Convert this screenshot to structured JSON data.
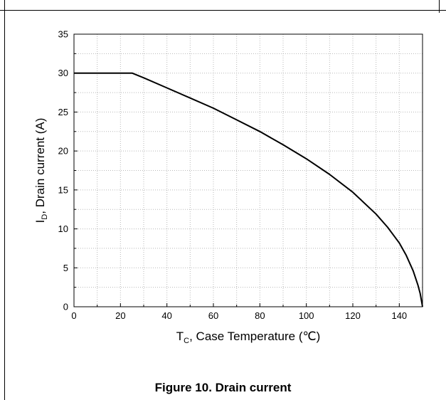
{
  "caption": "Figure 10. Drain current",
  "chart_data": {
    "type": "line",
    "title": "",
    "xlabel_main": "T",
    "xlabel_sub": "C",
    "xlabel_rest": ", Case Temperature (℃)",
    "ylabel_main": "I",
    "ylabel_sub": "D",
    "ylabel_rest": ", Drain current (A)",
    "xlim": [
      0,
      150
    ],
    "ylim": [
      0,
      35
    ],
    "xticks": [
      0,
      20,
      40,
      60,
      80,
      100,
      120,
      140
    ],
    "yticks": [
      0,
      5,
      10,
      15,
      20,
      25,
      30,
      35
    ],
    "grid": true,
    "series": [
      {
        "color": "#000000",
        "x": [
          0,
          25,
          30,
          40,
          50,
          60,
          70,
          80,
          90,
          100,
          110,
          120,
          130,
          135,
          140,
          143,
          146,
          148,
          149,
          150
        ],
        "y": [
          30,
          30,
          29.4,
          28.1,
          26.8,
          25.5,
          24.0,
          22.5,
          20.8,
          19.0,
          17.0,
          14.7,
          11.9,
          10.2,
          8.2,
          6.6,
          4.6,
          2.8,
          1.7,
          0
        ]
      }
    ]
  }
}
